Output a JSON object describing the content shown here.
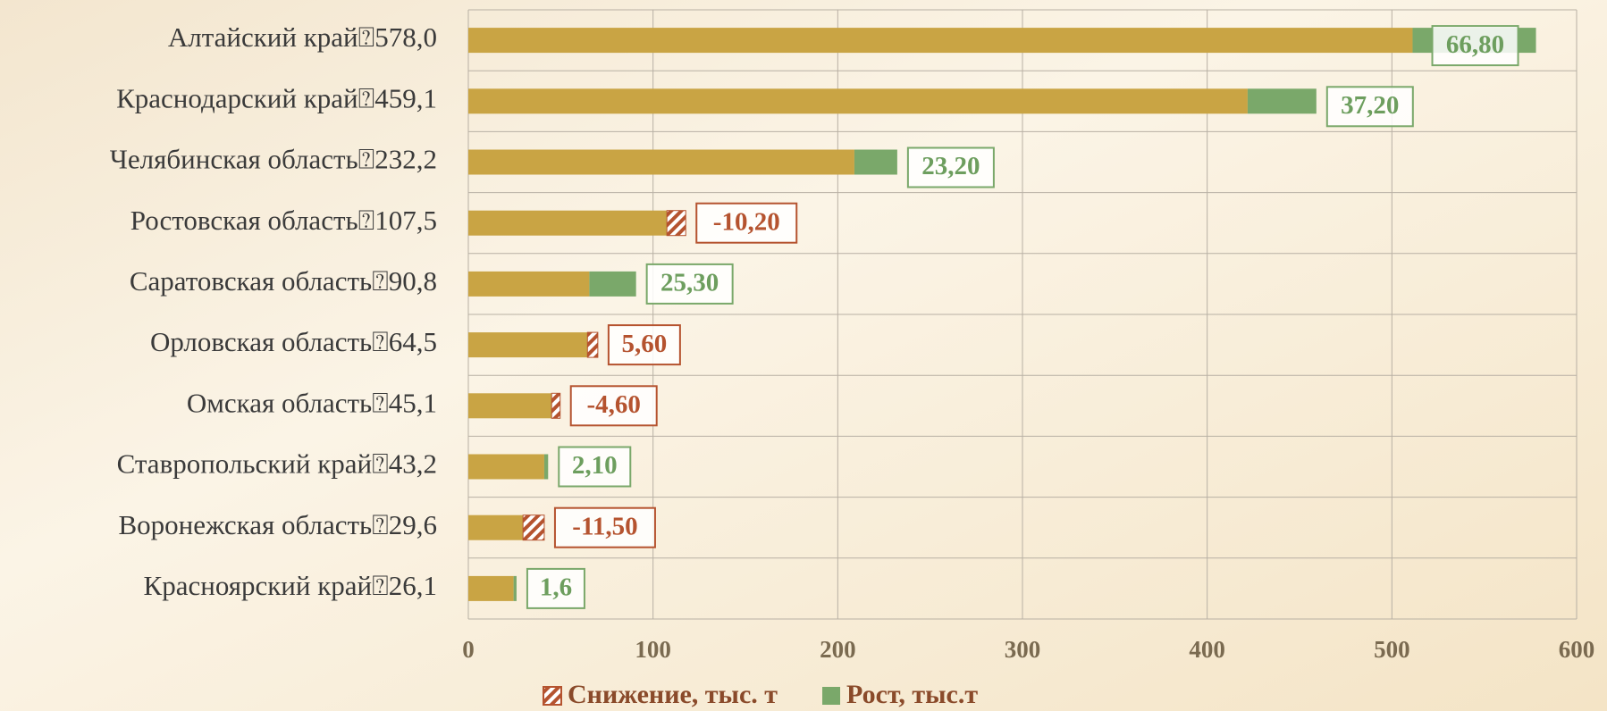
{
  "chart_data": {
    "type": "bar",
    "orientation": "horizontal",
    "stacked": true,
    "categories": [
      "Алтайский край⍰578,0",
      "Краснодарский край⍰459,1",
      "Челябинская область⍰232,2",
      "Ростовская область⍰107,5",
      "Саратовская область⍰90,8",
      "Орловская область⍰64,5",
      "Омская область⍰45,1",
      "Ставропольский край⍰43,2",
      "Воронежская область⍰29,6",
      "Красноярский край⍰26,1"
    ],
    "series": [
      {
        "color": "#c9a444",
        "values": [
          511.2,
          421.9,
          209.0,
          107.5,
          65.5,
          64.5,
          45.1,
          41.1,
          29.6,
          24.5
        ]
      },
      {
        "name": "Снижение, тыс. т",
        "color": "#b5532f",
        "hatched": true,
        "values": [
          null,
          null,
          null,
          -10.2,
          null,
          5.6,
          -4.6,
          null,
          -11.5,
          null
        ],
        "value_labels": [
          null,
          null,
          null,
          "-10,20",
          null,
          "5,60",
          "-4,60",
          null,
          "-11,50",
          null
        ]
      },
      {
        "name": "Рост, тыс.т",
        "color": "#7aa86a",
        "values": [
          66.8,
          37.2,
          23.2,
          null,
          25.3,
          null,
          null,
          2.1,
          null,
          1.6
        ],
        "value_labels": [
          "66,80",
          "37,20",
          "23,20",
          null,
          "25,30",
          null,
          null,
          "2,10",
          null,
          "1,6"
        ]
      }
    ],
    "xlim": [
      0,
      600
    ],
    "xticks": [
      0,
      100,
      200,
      300,
      400,
      500,
      600
    ],
    "grid": true
  }
}
